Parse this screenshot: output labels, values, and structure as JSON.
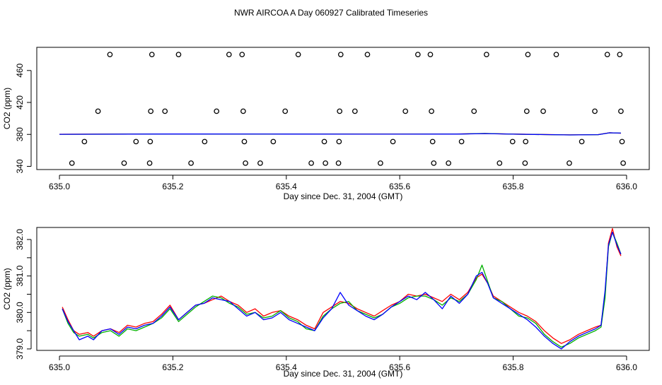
{
  "title": "NWR AIRCOA A  Day 060927  Calibrated Timeseries",
  "chart_data": [
    {
      "type": "scatter+line",
      "xlabel": "Day since Dec. 31, 2004 (GMT)",
      "ylabel": "CO2 (ppm)",
      "xlim": [
        634.96,
        636.04
      ],
      "ylim": [
        336,
        489
      ],
      "xticks": [
        "635.0",
        "635.2",
        "635.4",
        "635.6",
        "635.8",
        "636.0"
      ],
      "xtick_values": [
        635.0,
        635.2,
        635.4,
        635.6,
        635.8,
        636.0
      ],
      "yticks": [
        "340",
        "380",
        "420",
        "460"
      ],
      "ytick_values": [
        340,
        380,
        420,
        460
      ],
      "markers": [
        {
          "x": 635.022,
          "y": 344
        },
        {
          "x": 635.044,
          "y": 371
        },
        {
          "x": 635.068,
          "y": 409
        },
        {
          "x": 635.089,
          "y": 480
        },
        {
          "x": 635.114,
          "y": 344
        },
        {
          "x": 635.135,
          "y": 371
        },
        {
          "x": 635.159,
          "y": 344
        },
        {
          "x": 635.16,
          "y": 371
        },
        {
          "x": 635.161,
          "y": 409
        },
        {
          "x": 635.163,
          "y": 480
        },
        {
          "x": 635.186,
          "y": 409
        },
        {
          "x": 635.21,
          "y": 480
        },
        {
          "x": 635.232,
          "y": 344
        },
        {
          "x": 635.256,
          "y": 371
        },
        {
          "x": 635.277,
          "y": 409
        },
        {
          "x": 635.299,
          "y": 480
        },
        {
          "x": 635.322,
          "y": 480
        },
        {
          "x": 635.324,
          "y": 409
        },
        {
          "x": 635.326,
          "y": 371
        },
        {
          "x": 635.328,
          "y": 344
        },
        {
          "x": 635.354,
          "y": 344
        },
        {
          "x": 635.377,
          "y": 371
        },
        {
          "x": 635.398,
          "y": 409
        },
        {
          "x": 635.421,
          "y": 480
        },
        {
          "x": 635.444,
          "y": 344
        },
        {
          "x": 635.467,
          "y": 371
        },
        {
          "x": 635.469,
          "y": 344
        },
        {
          "x": 635.492,
          "y": 344
        },
        {
          "x": 635.493,
          "y": 371
        },
        {
          "x": 635.494,
          "y": 409
        },
        {
          "x": 635.496,
          "y": 480
        },
        {
          "x": 635.521,
          "y": 409
        },
        {
          "x": 635.543,
          "y": 480
        },
        {
          "x": 635.566,
          "y": 344
        },
        {
          "x": 635.588,
          "y": 371
        },
        {
          "x": 635.61,
          "y": 409
        },
        {
          "x": 635.632,
          "y": 480
        },
        {
          "x": 635.654,
          "y": 480
        },
        {
          "x": 635.656,
          "y": 409
        },
        {
          "x": 635.658,
          "y": 371
        },
        {
          "x": 635.66,
          "y": 344
        },
        {
          "x": 635.686,
          "y": 344
        },
        {
          "x": 635.709,
          "y": 371
        },
        {
          "x": 635.731,
          "y": 409
        },
        {
          "x": 635.753,
          "y": 480
        },
        {
          "x": 635.776,
          "y": 344
        },
        {
          "x": 635.799,
          "y": 371
        },
        {
          "x": 635.821,
          "y": 344
        },
        {
          "x": 635.822,
          "y": 371
        },
        {
          "x": 635.824,
          "y": 409
        },
        {
          "x": 635.826,
          "y": 480
        },
        {
          "x": 635.853,
          "y": 409
        },
        {
          "x": 635.876,
          "y": 480
        },
        {
          "x": 635.899,
          "y": 344
        },
        {
          "x": 635.921,
          "y": 371
        },
        {
          "x": 635.944,
          "y": 409
        },
        {
          "x": 635.966,
          "y": 480
        },
        {
          "x": 635.988,
          "y": 480
        },
        {
          "x": 635.99,
          "y": 409
        },
        {
          "x": 635.992,
          "y": 371
        },
        {
          "x": 635.994,
          "y": 344
        }
      ],
      "series": [
        {
          "name": "red",
          "color": "#ff0000",
          "x": [
            635.0,
            635.2,
            635.4,
            635.6,
            635.7,
            635.75,
            635.8,
            635.9,
            635.95,
            635.97,
            635.99
          ],
          "y": [
            380.2,
            380.6,
            380.4,
            380.4,
            380.5,
            381.1,
            380.4,
            379.4,
            379.8,
            382.1,
            381.5
          ]
        },
        {
          "name": "green",
          "color": "#00b000",
          "x": [
            635.0,
            635.2,
            635.4,
            635.6,
            635.7,
            635.75,
            635.8,
            635.9,
            635.95,
            635.97,
            635.99
          ],
          "y": [
            380.1,
            380.5,
            380.4,
            380.3,
            380.4,
            381.2,
            380.3,
            379.3,
            379.7,
            382.0,
            381.6
          ]
        },
        {
          "name": "blue",
          "color": "#0000ff",
          "x": [
            635.0,
            635.2,
            635.4,
            635.6,
            635.7,
            635.75,
            635.8,
            635.9,
            635.95,
            635.97,
            635.99
          ],
          "y": [
            380.1,
            380.5,
            380.4,
            380.3,
            380.4,
            381.0,
            380.3,
            379.3,
            379.7,
            382.0,
            381.6
          ]
        }
      ]
    },
    {
      "type": "line",
      "xlabel": "Day since Dec. 31, 2004 (GMT)",
      "ylabel": "CO2 (ppm)",
      "xlim": [
        634.96,
        636.04
      ],
      "ylim": [
        378.96,
        382.33
      ],
      "xticks": [
        "635.0",
        "635.2",
        "635.4",
        "635.6",
        "635.8",
        "636.0"
      ],
      "xtick_values": [
        635.0,
        635.2,
        635.4,
        635.6,
        635.8,
        636.0
      ],
      "yticks": [
        "379.0",
        "380.0",
        "381.0",
        "382.0"
      ],
      "ytick_values": [
        379.0,
        380.0,
        381.0,
        382.0
      ],
      "yticks_minor": [
        379.5,
        380.5,
        381.5
      ],
      "series": [
        {
          "name": "red",
          "color": "#ff0000",
          "x": [
            635.005,
            635.015,
            635.025,
            635.035,
            635.05,
            635.06,
            635.075,
            635.09,
            635.105,
            635.12,
            635.135,
            635.15,
            635.165,
            635.18,
            635.195,
            635.21,
            635.225,
            635.24,
            635.255,
            635.27,
            635.285,
            635.3,
            635.315,
            635.33,
            635.345,
            635.36,
            635.375,
            635.39,
            635.405,
            635.42,
            635.435,
            635.45,
            635.465,
            635.48,
            635.495,
            635.51,
            635.525,
            635.54,
            635.555,
            635.57,
            635.585,
            635.6,
            635.615,
            635.63,
            635.645,
            635.66,
            635.675,
            635.69,
            635.705,
            635.72,
            635.735,
            635.745,
            635.755,
            635.765,
            635.78,
            635.795,
            635.81,
            635.825,
            635.84,
            635.855,
            635.87,
            635.885,
            635.9,
            635.915,
            635.93,
            635.945,
            635.955,
            635.962,
            635.968,
            635.975,
            635.983,
            635.99
          ],
          "y": [
            380.15,
            379.8,
            379.5,
            379.4,
            379.45,
            379.35,
            379.5,
            379.55,
            379.45,
            379.65,
            379.6,
            379.7,
            379.75,
            379.95,
            380.2,
            379.8,
            380.0,
            380.2,
            380.25,
            380.35,
            380.45,
            380.3,
            380.2,
            380.0,
            380.1,
            379.9,
            380.0,
            380.05,
            379.9,
            379.8,
            379.65,
            379.55,
            380.0,
            380.15,
            380.3,
            380.25,
            380.1,
            380.0,
            379.9,
            380.05,
            380.2,
            380.3,
            380.5,
            380.45,
            380.5,
            380.4,
            380.3,
            380.5,
            380.35,
            380.55,
            380.95,
            381.05,
            380.8,
            380.45,
            380.3,
            380.15,
            380.0,
            379.9,
            379.75,
            379.5,
            379.3,
            379.15,
            379.25,
            379.4,
            379.5,
            379.6,
            379.65,
            380.5,
            381.9,
            382.3,
            381.8,
            381.55
          ]
        },
        {
          "name": "green",
          "color": "#00b000",
          "x": [
            635.005,
            635.015,
            635.025,
            635.035,
            635.05,
            635.06,
            635.075,
            635.09,
            635.105,
            635.12,
            635.135,
            635.15,
            635.165,
            635.18,
            635.195,
            635.21,
            635.225,
            635.24,
            635.255,
            635.27,
            635.285,
            635.3,
            635.315,
            635.33,
            635.345,
            635.36,
            635.375,
            635.39,
            635.405,
            635.42,
            635.435,
            635.45,
            635.465,
            635.48,
            635.495,
            635.51,
            635.525,
            635.54,
            635.555,
            635.57,
            635.585,
            635.6,
            635.615,
            635.63,
            635.645,
            635.66,
            635.675,
            635.69,
            635.705,
            635.72,
            635.735,
            635.745,
            635.755,
            635.765,
            635.78,
            635.795,
            635.81,
            635.825,
            635.84,
            635.855,
            635.87,
            635.885,
            635.9,
            635.915,
            635.93,
            635.945,
            635.955,
            635.962,
            635.968,
            635.975,
            635.983,
            635.99
          ],
          "y": [
            380.1,
            379.7,
            379.45,
            379.35,
            379.4,
            379.3,
            379.45,
            379.5,
            379.35,
            379.55,
            379.5,
            379.6,
            379.7,
            379.85,
            380.1,
            379.75,
            379.95,
            380.15,
            380.3,
            380.45,
            380.4,
            380.25,
            380.15,
            379.95,
            380.0,
            379.85,
            379.9,
            380.05,
            379.85,
            379.75,
            379.55,
            379.5,
            379.9,
            380.1,
            380.25,
            380.3,
            380.05,
            379.95,
            379.85,
            379.95,
            380.15,
            380.25,
            380.4,
            380.45,
            380.45,
            380.35,
            380.2,
            380.4,
            380.3,
            380.5,
            380.9,
            381.3,
            380.85,
            380.4,
            380.3,
            380.1,
            379.9,
            379.85,
            379.7,
            379.4,
            379.2,
            379.05,
            379.15,
            379.3,
            379.4,
            379.5,
            379.6,
            380.4,
            381.8,
            382.2,
            381.9,
            381.6
          ]
        },
        {
          "name": "blue",
          "color": "#0000ff",
          "x": [
            635.005,
            635.015,
            635.025,
            635.035,
            635.05,
            635.06,
            635.075,
            635.09,
            635.105,
            635.12,
            635.135,
            635.15,
            635.165,
            635.18,
            635.195,
            635.21,
            635.225,
            635.24,
            635.255,
            635.27,
            635.285,
            635.3,
            635.315,
            635.33,
            635.345,
            635.36,
            635.375,
            635.39,
            635.405,
            635.42,
            635.435,
            635.45,
            635.465,
            635.48,
            635.495,
            635.51,
            635.525,
            635.54,
            635.555,
            635.57,
            635.585,
            635.6,
            635.615,
            635.63,
            635.645,
            635.66,
            635.675,
            635.69,
            635.705,
            635.72,
            635.735,
            635.745,
            635.755,
            635.765,
            635.78,
            635.795,
            635.81,
            635.825,
            635.84,
            635.855,
            635.87,
            635.885,
            635.9,
            635.915,
            635.93,
            635.945,
            635.955,
            635.962,
            635.968,
            635.975,
            635.983,
            635.99
          ],
          "y": [
            380.1,
            379.75,
            379.5,
            379.25,
            379.35,
            379.25,
            379.5,
            379.55,
            379.4,
            379.6,
            379.55,
            379.65,
            379.7,
            379.9,
            380.15,
            379.8,
            380.0,
            380.2,
            380.25,
            380.4,
            380.35,
            380.3,
            380.1,
            379.9,
            380.0,
            379.8,
            379.85,
            380.0,
            379.8,
            379.7,
            379.6,
            379.5,
            379.85,
            380.1,
            380.55,
            380.2,
            380.05,
            379.9,
            379.8,
            379.95,
            380.15,
            380.3,
            380.45,
            380.35,
            380.55,
            380.35,
            380.1,
            380.45,
            380.25,
            380.5,
            381.0,
            381.1,
            380.8,
            380.4,
            380.25,
            380.1,
            379.95,
            379.8,
            379.6,
            379.35,
            379.15,
            379.0,
            379.2,
            379.35,
            379.45,
            379.55,
            379.65,
            380.6,
            381.85,
            382.2,
            381.85,
            381.6
          ]
        }
      ]
    }
  ]
}
